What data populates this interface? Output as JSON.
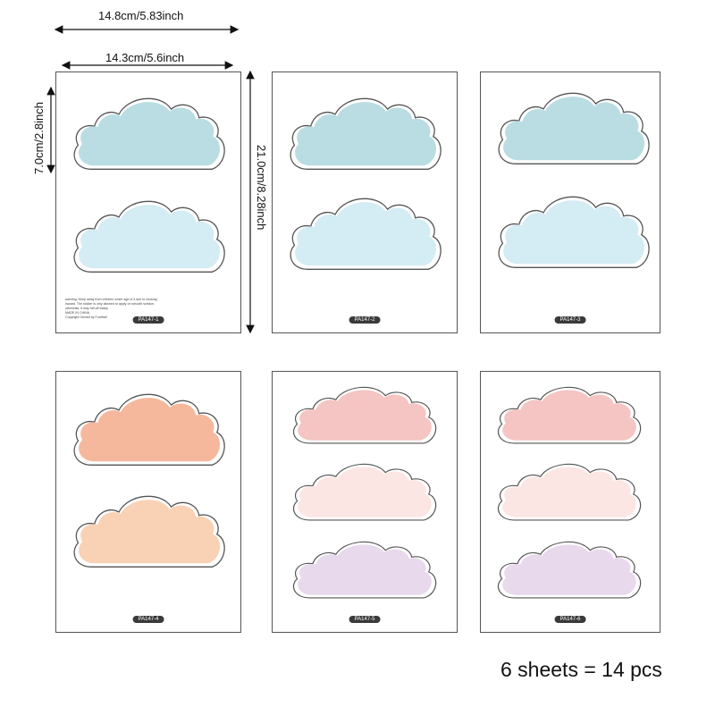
{
  "dimensions": {
    "outer_width": "14.8cm/5.83inch",
    "inner_width": "14.3cm/5.6inch",
    "sticker_height": "7.0cm/2.8inch",
    "sheet_height": "21.0cm/8.28inch"
  },
  "warning_lines": [
    "warning: Keep away from children under age of 3 due to choking",
    "hazard. The sticker is only allowed to apply on smooth surface,",
    "otherwise, it may fall off easily.",
    "MADE IN CHINA",
    "Copyright Owned by FunWall"
  ],
  "sheets": [
    {
      "code": "PA147-1",
      "clouds": [
        "#b9dde2",
        "#d4ecf3"
      ]
    },
    {
      "code": "PA147-2",
      "clouds": [
        "#b9dde2",
        "#d4ecf3"
      ]
    },
    {
      "code": "PA147-3",
      "clouds": [
        "#b9dde2",
        "#d4ecf3"
      ]
    },
    {
      "code": "PA147-4",
      "clouds": [
        "#f5b89c",
        "#f9d2b6"
      ]
    },
    {
      "code": "PA147-5",
      "clouds": [
        "#f4c5c3",
        "#fbe6e4",
        "#e8d9ec"
      ]
    },
    {
      "code": "PA147-6",
      "clouds": [
        "#f4c5c3",
        "#fbe6e4",
        "#e8d9ec"
      ]
    }
  ],
  "footer": "6 sheets = 14 pcs"
}
